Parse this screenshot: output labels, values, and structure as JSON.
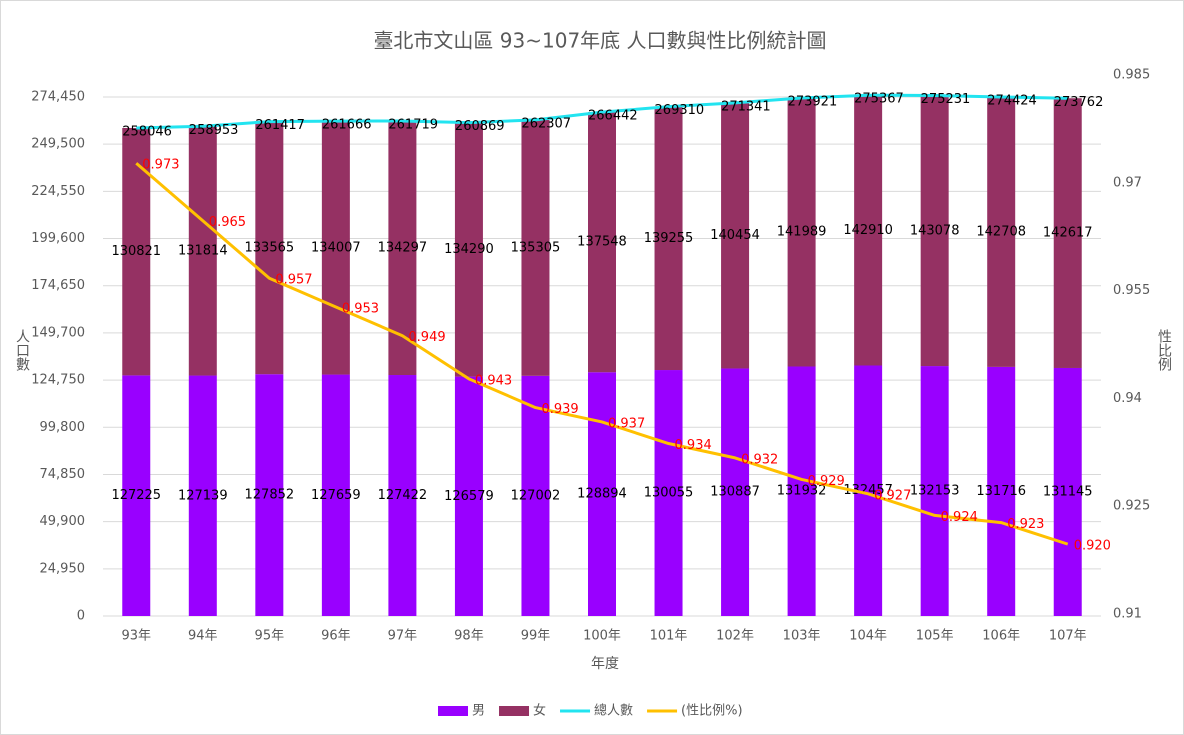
{
  "chart_data": {
    "type": "bar-line",
    "title": "臺北市文山區 93~107年底 人口數與性比例統計圖",
    "x_label": "年度",
    "y_label": "人口數",
    "y2_label": "性比例",
    "categories": [
      "93年",
      "94年",
      "95年",
      "96年",
      "97年",
      "98年",
      "99年",
      "100年",
      "101年",
      "102年",
      "103年",
      "104年",
      "105年",
      "106年",
      "107年"
    ],
    "series": [
      {
        "name": "男",
        "type": "bar",
        "color": "#9900ff",
        "values": [
          127225,
          127139,
          127852,
          127659,
          127422,
          126579,
          127002,
          128894,
          130055,
          130887,
          131932,
          132457,
          132153,
          131716,
          131145
        ]
      },
      {
        "name": "女",
        "type": "bar",
        "color": "#953163",
        "values": [
          130821,
          131814,
          133565,
          134007,
          134297,
          134290,
          135305,
          137548,
          139255,
          140454,
          141989,
          142910,
          143078,
          142708,
          142617
        ]
      },
      {
        "name": "總人數",
        "type": "line",
        "color": "#22e4f0",
        "values": [
          258046,
          258953,
          261417,
          261666,
          261719,
          260869,
          262307,
          266442,
          269310,
          271341,
          273921,
          275367,
          275231,
          274424,
          273762
        ]
      },
      {
        "name": "(性比例%)",
        "type": "line",
        "axis": "y2",
        "color": "#ffc000",
        "label_color": "#ff0000",
        "values": [
          0.973,
          0.965,
          0.957,
          0.953,
          0.949,
          0.943,
          0.939,
          0.937,
          0.934,
          0.932,
          0.929,
          0.927,
          0.924,
          0.923,
          0.92
        ],
        "value_labels": [
          "0.973",
          "0.965",
          "0.957",
          "0.953",
          "0.949",
          "0.943",
          "0.939",
          "0.937",
          "0.934",
          "0.932",
          "0.929",
          "0.927",
          "0.924",
          "0.923",
          "0.920"
        ]
      }
    ],
    "ylim": [
      0,
      285000
    ],
    "yticks": [
      0,
      {
        "value": 24950,
        "label": "24,950"
      },
      {
        "value": 49900,
        "label": "49,900"
      },
      {
        "value": 74850,
        "label": "74,850"
      },
      {
        "value": 99800,
        "label": "99,800"
      },
      {
        "value": 124750,
        "label": "124,750"
      },
      {
        "value": 149700,
        "label": "149,700"
      },
      {
        "value": 174650,
        "label": "174,650"
      },
      {
        "value": 199600,
        "label": "199,600"
      },
      {
        "value": 224550,
        "label": "224,550"
      },
      {
        "value": 249500,
        "label": "249,500"
      },
      {
        "value": 274450,
        "label": "274,450"
      }
    ],
    "y2lim": [
      0.91,
      0.985
    ],
    "y2ticks": [
      0.91,
      0.925,
      0.94,
      0.955,
      0.97,
      0.985
    ],
    "grid": true,
    "legend": "bottom"
  }
}
